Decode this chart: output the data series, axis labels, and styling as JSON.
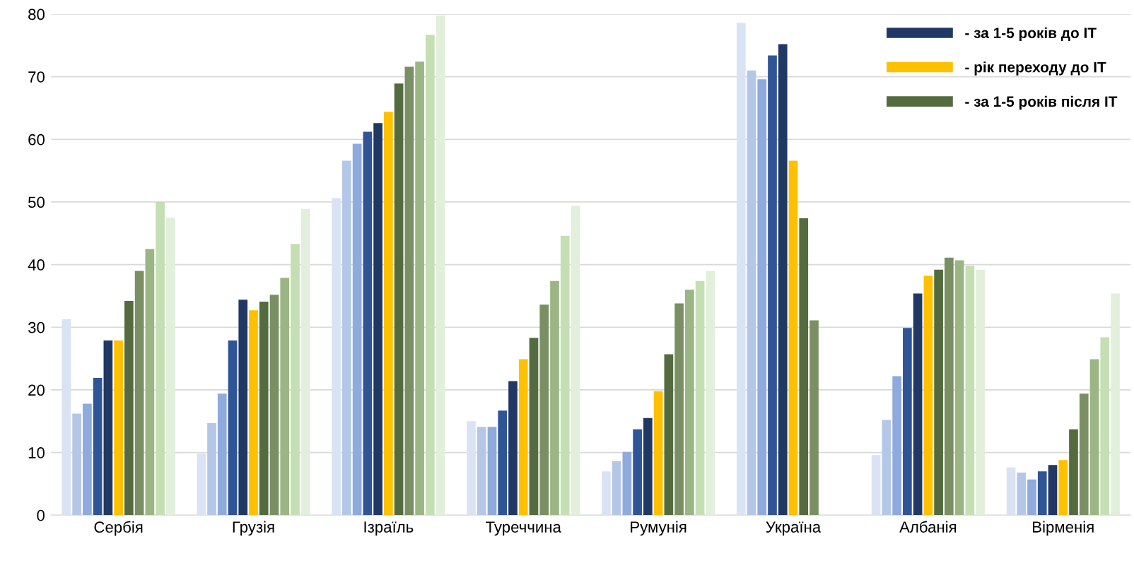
{
  "chart_data": {
    "type": "bar",
    "categories": [
      "Сербія",
      "Грузія",
      "Ізраїль",
      "Туреччина",
      "Румунія",
      "Україна",
      "Албанія",
      "Вірменія"
    ],
    "series": [
      {
        "color": "#dae3f3",
        "values": [
          31.3,
          9.8,
          50.6,
          15.0,
          7.0,
          78.6,
          9.6,
          7.6
        ]
      },
      {
        "color": "#b4c7e7",
        "values": [
          16.2,
          14.7,
          56.6,
          14.1,
          8.6,
          71.0,
          15.2,
          6.8
        ]
      },
      {
        "color": "#8faadc",
        "values": [
          17.8,
          19.4,
          59.3,
          14.1,
          10.1,
          69.6,
          22.2,
          5.7
        ]
      },
      {
        "color": "#2f5597",
        "values": [
          21.9,
          27.9,
          61.2,
          16.7,
          13.7,
          73.4,
          29.9,
          7.0
        ]
      },
      {
        "name": "- за 1-5 років до ІТ",
        "color": "#203864",
        "values": [
          27.9,
          34.4,
          62.6,
          21.4,
          15.5,
          75.2,
          35.4,
          8.0
        ]
      },
      {
        "name": "- рік переходу до ІТ",
        "color": "#ffc000",
        "values": [
          27.9,
          32.7,
          64.4,
          24.9,
          19.8,
          56.6,
          38.2,
          8.8
        ]
      },
      {
        "name": "- за 1-5 років після ІТ",
        "color": "#546b40",
        "values": [
          34.2,
          34.1,
          68.9,
          28.3,
          25.7,
          47.4,
          39.2,
          13.7
        ]
      },
      {
        "color": "#7a8f63",
        "values": [
          39.0,
          35.2,
          71.6,
          33.6,
          33.8,
          31.1,
          41.1,
          19.4
        ]
      },
      {
        "color": "#9bb585",
        "values": [
          42.5,
          37.9,
          72.4,
          37.4,
          36.0,
          null,
          40.7,
          24.9
        ]
      },
      {
        "color": "#c5dfb4",
        "values": [
          50.0,
          43.3,
          76.7,
          44.6,
          37.4,
          null,
          39.8,
          28.4
        ]
      },
      {
        "color": "#e2efda",
        "values": [
          47.5,
          48.9,
          79.8,
          49.4,
          39.0,
          null,
          39.2,
          35.4
        ]
      }
    ],
    "ylim": [
      0,
      80
    ],
    "yticks": [
      0,
      10,
      20,
      30,
      40,
      50,
      60,
      70,
      80
    ],
    "grid": "y",
    "legend": "top right"
  }
}
